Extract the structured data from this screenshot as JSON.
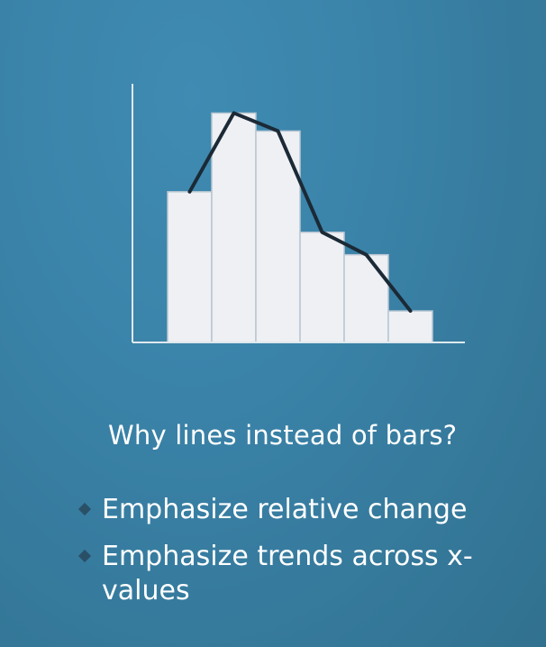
{
  "slide": {
    "question": "Why lines instead of bars?",
    "bullets": [
      {
        "label": "Emphasize relative change"
      },
      {
        "label": "Emphasize trends across x-values"
      }
    ],
    "colors": {
      "background": "#3a82a8",
      "bar_fill": "#eef0f4",
      "bar_stroke": "#b8c6d2",
      "line": "#1b2a36",
      "axis": "#dfe8ee",
      "bullet_diamond": "#2a5068"
    }
  },
  "chart_data": {
    "type": "bar",
    "overlay": "line",
    "categories": [
      "",
      "",
      "",
      "",
      "",
      ""
    ],
    "values": [
      6.7,
      10.2,
      9.4,
      4.9,
      3.9,
      1.4
    ],
    "line_values": [
      6.7,
      10.2,
      9.4,
      4.9,
      3.9,
      1.4
    ],
    "title": "",
    "xlabel": "",
    "ylabel": "",
    "ylim": [
      0,
      11.5
    ],
    "grid": false
  }
}
